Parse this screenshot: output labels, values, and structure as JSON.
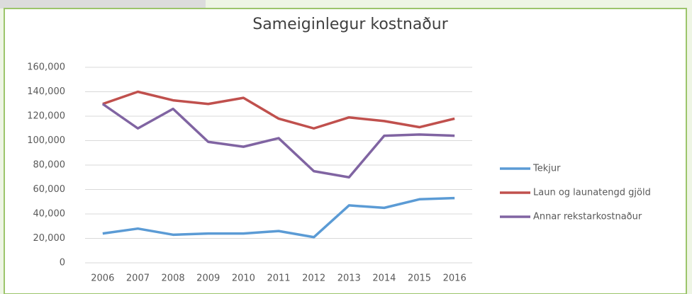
{
  "chart_data": {
    "type": "line",
    "title": "Sameiginlegur kostnaður",
    "categories": [
      "2006",
      "2007",
      "2008",
      "2009",
      "2010",
      "2011",
      "2012",
      "2013",
      "2014",
      "2015",
      "2016"
    ],
    "series": [
      {
        "name": "Tekjur",
        "color": "#5b9bd5",
        "values": [
          24000,
          28000,
          23000,
          24000,
          24000,
          26000,
          21000,
          47000,
          45000,
          52000,
          53000
        ]
      },
      {
        "name": "Laun og launatengd gjöld",
        "color": "#c0504d",
        "values": [
          130000,
          140000,
          133000,
          130000,
          135000,
          118000,
          110000,
          119000,
          116000,
          111000,
          118000
        ]
      },
      {
        "name": "Annar rekstarkostnaður",
        "color": "#8064a2",
        "values": [
          130000,
          110000,
          126000,
          99000,
          95000,
          102000,
          75000,
          70000,
          104000,
          105000,
          104000
        ]
      }
    ],
    "ylim": [
      0,
      160000
    ],
    "yticks": [
      0,
      {
        "value": 20000,
        "label": "20,000"
      },
      {
        "value": 40000,
        "label": "40,000"
      },
      {
        "value": 60000,
        "label": "60,000"
      },
      {
        "value": 80000,
        "label": "80,000"
      },
      {
        "value": 100000,
        "label": "100,000"
      },
      {
        "value": 120000,
        "label": "120,000"
      },
      {
        "value": 140000,
        "label": "140,000"
      },
      {
        "value": 160000,
        "label": "160,000"
      }
    ],
    "grid": true,
    "legend": "right"
  }
}
